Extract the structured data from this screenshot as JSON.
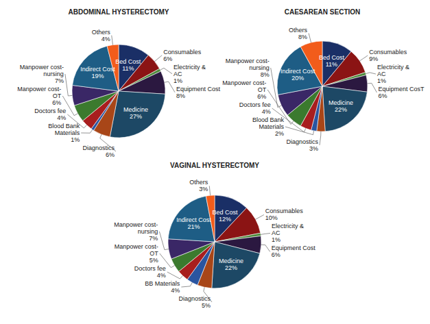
{
  "chart_data": [
    {
      "type": "pie",
      "title": "ABDOMINAL HYSTERECTOMY",
      "categories": [
        "Bed Cost",
        "Consumables",
        "Electricity & AC",
        "Equipment Cost",
        "Medicine",
        "Diagnostics",
        "Blood Bank Materials",
        "Doctors fee",
        "Manpower cost-OT",
        "Manpower cost-nursing",
        "Indirect Cost",
        "Others"
      ],
      "values": [
        11,
        6,
        1,
        8,
        27,
        6,
        1,
        4,
        6,
        7,
        19,
        4
      ],
      "value_labels": [
        "11%",
        "6%",
        "1%",
        "8%",
        "27%",
        "6%",
        "1%",
        "4%",
        "6%",
        "7%",
        "19%",
        "4%"
      ],
      "colors": [
        "#1a2f66",
        "#8b1414",
        "#4e8a3c",
        "#2b1840",
        "#1d4865",
        "#a84618",
        "#2a55a0",
        "#a81e1e",
        "#3b7a2e",
        "#3a2766",
        "#1e5d85",
        "#f25c1b"
      ],
      "data_labels": true
    },
    {
      "type": "pie",
      "title": "CAESAREAN SECTION",
      "categories": [
        "Bed Cost",
        "Consumables",
        "Electricity & AC",
        "Equipment CosT",
        "Medicine",
        "Diagnostics",
        "Blood Bank Materials",
        "Doctors fee",
        "Manpower cost-OT",
        "Manpower cost-nursing",
        "Indirect Cost",
        "Others"
      ],
      "values": [
        11,
        9,
        1,
        6,
        22,
        3,
        2,
        4,
        6,
        8,
        20,
        8
      ],
      "value_labels": [
        "11%",
        "9%",
        "1%",
        "6%",
        "22%",
        "3%",
        "2%",
        "4%",
        "6%",
        "8%",
        "20%",
        "8%"
      ],
      "colors": [
        "#1a2f66",
        "#8b1414",
        "#4e8a3c",
        "#2b1840",
        "#1d4865",
        "#a84618",
        "#2a55a0",
        "#a81e1e",
        "#3b7a2e",
        "#3a2766",
        "#1e5d85",
        "#f25c1b"
      ],
      "data_labels": true
    },
    {
      "type": "pie",
      "title": "VAGINAL HYSTERECTOMY",
      "categories": [
        "Bed Cost",
        "Consumables",
        "Electricity & AC",
        "Equipment Cost",
        "Medicine",
        "Diagnostics",
        "BB Materials",
        "Doctors fee",
        "Manpower cost-OT",
        "Manpower cost-nursing",
        "Indirect Cost",
        "Others"
      ],
      "values": [
        12,
        10,
        1,
        6,
        22,
        5,
        4,
        4,
        5,
        7,
        21,
        3
      ],
      "value_labels": [
        "12%",
        "10%",
        "1%",
        "6%",
        "22%",
        "5%",
        "4%",
        "4%",
        "5%",
        "7%",
        "21%",
        "3%"
      ],
      "colors": [
        "#1a2f66",
        "#8b1414",
        "#4e8a3c",
        "#2b1840",
        "#1d4865",
        "#a84618",
        "#2a55a0",
        "#a81e1e",
        "#3b7a2e",
        "#3a2766",
        "#1e5d85",
        "#f25c1b"
      ],
      "data_labels": true
    }
  ]
}
